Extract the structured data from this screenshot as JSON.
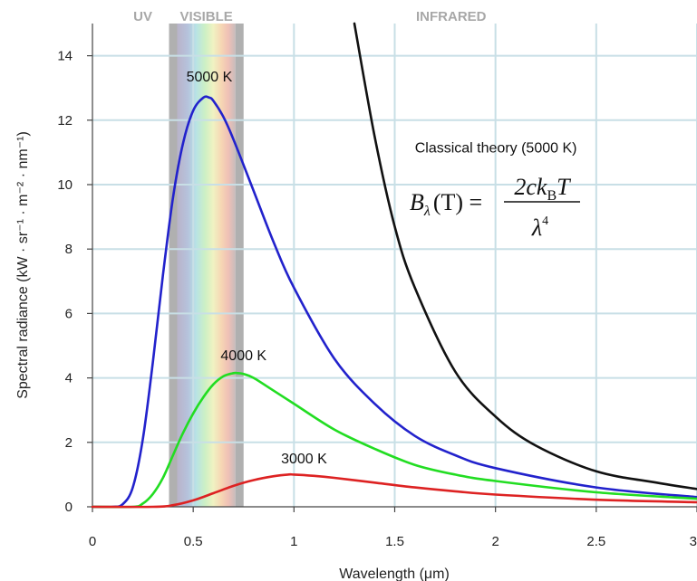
{
  "chart_data": {
    "type": "line",
    "xlabel": "Wavelength (μm)",
    "ylabel": "Spectral radiance (kW · sr⁻¹ · m⁻² · nm⁻¹)",
    "xlim": [
      0,
      3
    ],
    "ylim": [
      0,
      15
    ],
    "x_ticks": [
      "0",
      "0.5",
      "1",
      "1.5",
      "2",
      "2.5",
      "3"
    ],
    "y_ticks": [
      "0",
      "2",
      "4",
      "6",
      "8",
      "10",
      "12",
      "14"
    ],
    "grid": true,
    "colors": {
      "t5000": "#2222cc",
      "t4000": "#22dd22",
      "t3000": "#dd2222",
      "classical": "#111111",
      "grid": "#c8dfe6",
      "band_gray": "#b0b0b0"
    },
    "bands": [
      {
        "label": "UV",
        "from": 0.0,
        "to": 0.38
      },
      {
        "label": "VISIBLE",
        "from": 0.38,
        "to": 0.75
      },
      {
        "label": "INFRARED",
        "from": 0.75,
        "to": 3.0
      }
    ],
    "series": [
      {
        "name": "5000 K",
        "temperature_K": 5000,
        "peak": [
          0.58,
          12.7
        ],
        "x": [
          0.1,
          0.15,
          0.2,
          0.25,
          0.3,
          0.35,
          0.4,
          0.45,
          0.5,
          0.55,
          0.58,
          0.6,
          0.65,
          0.7,
          0.8,
          0.9,
          1.0,
          1.2,
          1.4,
          1.6,
          1.8,
          2.0,
          2.5,
          3.0
        ],
        "y": [
          0.0,
          0.08,
          0.6,
          2.1,
          4.5,
          7.2,
          9.6,
          11.3,
          12.3,
          12.7,
          12.7,
          12.6,
          12.1,
          11.4,
          9.8,
          8.2,
          6.8,
          4.6,
          3.2,
          2.2,
          1.6,
          1.2,
          0.6,
          0.3
        ]
      },
      {
        "name": "4000 K",
        "temperature_K": 4000,
        "peak": [
          0.72,
          4.2
        ],
        "x": [
          0.2,
          0.25,
          0.3,
          0.35,
          0.4,
          0.45,
          0.5,
          0.55,
          0.6,
          0.65,
          0.7,
          0.72,
          0.75,
          0.8,
          0.9,
          1.0,
          1.2,
          1.4,
          1.6,
          1.8,
          2.0,
          2.5,
          3.0
        ],
        "y": [
          0.0,
          0.1,
          0.4,
          0.9,
          1.6,
          2.3,
          2.9,
          3.4,
          3.8,
          4.05,
          4.15,
          4.15,
          4.12,
          4.0,
          3.6,
          3.2,
          2.4,
          1.8,
          1.3,
          1.0,
          0.8,
          0.45,
          0.25
        ]
      },
      {
        "name": "3000 K",
        "temperature_K": 3000,
        "peak": [
          0.97,
          1.0
        ],
        "x": [
          0.3,
          0.4,
          0.5,
          0.6,
          0.7,
          0.8,
          0.9,
          0.97,
          1.0,
          1.1,
          1.2,
          1.4,
          1.6,
          1.8,
          2.0,
          2.5,
          3.0
        ],
        "y": [
          0.0,
          0.05,
          0.2,
          0.42,
          0.65,
          0.83,
          0.95,
          1.0,
          1.0,
          0.96,
          0.9,
          0.75,
          0.6,
          0.48,
          0.38,
          0.22,
          0.14
        ]
      },
      {
        "name": "Classical theory (5000 K)",
        "temperature_K": 5000,
        "equation": "B_λ(T) = 2ck_B T / λ⁴",
        "x": [
          1.3,
          1.4,
          1.5,
          1.6,
          1.8,
          2.0,
          2.2,
          2.5,
          2.8,
          3.0
        ],
        "y": [
          15.0,
          11.5,
          8.7,
          6.8,
          4.2,
          2.8,
          1.9,
          1.1,
          0.75,
          0.55
        ]
      }
    ],
    "annotations": [
      {
        "text": "5000 K",
        "x": 0.58,
        "y": 13.2
      },
      {
        "text": "4000 K",
        "x": 0.75,
        "y": 4.55
      },
      {
        "text": "3000 K",
        "x": 1.05,
        "y": 1.35
      },
      {
        "text": "Classical theory (5000 K)",
        "x": 1.6,
        "y": 11.0
      }
    ],
    "formula": {
      "lhs_B": "B",
      "lhs_sub": "λ",
      "lhs_rest": "(T) =",
      "num_a": "2ck",
      "num_sub": "B",
      "num_b": "T",
      "den": "λ",
      "den_sup": "4"
    }
  }
}
